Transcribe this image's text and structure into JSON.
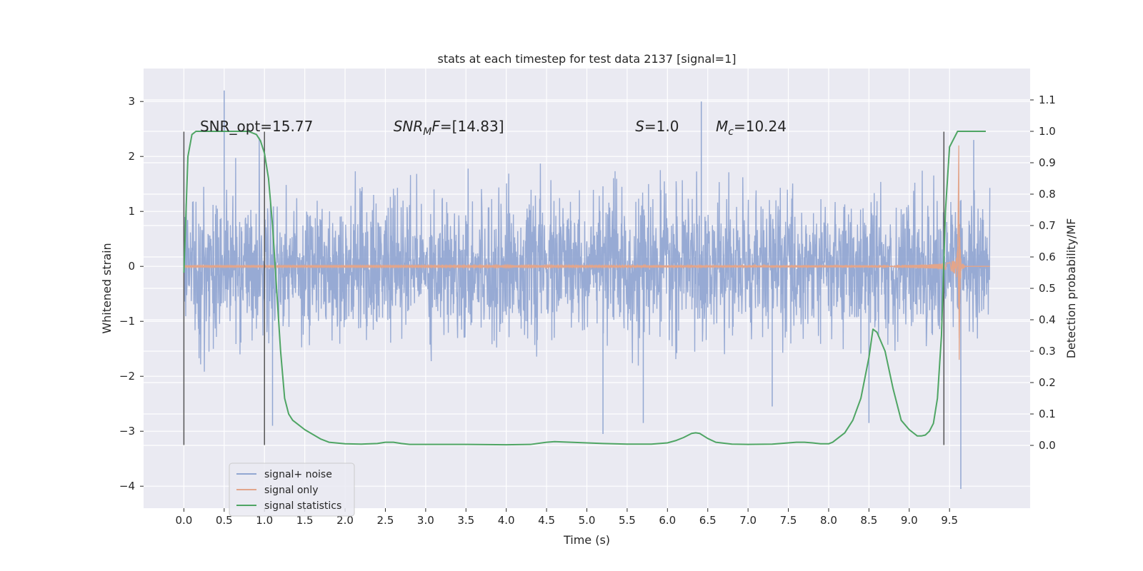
{
  "chart_data": {
    "type": "line",
    "title": "stats at each timestep for test data 2137 [signal=1]",
    "xlabel": "Time (s)",
    "ylabel": "Whitened strain",
    "y2label": "Detection probability/MF",
    "xlim": [
      -0.5,
      10.5
    ],
    "ylim": [
      -4.4,
      3.6
    ],
    "y2lim": [
      -0.2,
      1.2
    ],
    "x_ticks": [
      0.0,
      0.5,
      1.0,
      1.5,
      2.0,
      2.5,
      3.0,
      3.5,
      4.0,
      4.5,
      5.0,
      5.5,
      6.0,
      6.5,
      7.0,
      7.5,
      8.0,
      8.5,
      9.0,
      9.5
    ],
    "x_tick_labels": [
      "0.0",
      "0.5",
      "1.0",
      "1.5",
      "2.0",
      "2.5",
      "3.0",
      "3.5",
      "4.0",
      "4.5",
      "5.0",
      "5.5",
      "6.0",
      "6.5",
      "7.0",
      "7.5",
      "8.0",
      "8.5",
      "9.0",
      "9.5"
    ],
    "y_ticks": [
      -4,
      -3,
      -2,
      -1,
      0,
      1,
      2,
      3
    ],
    "y_tick_labels": [
      "−4",
      "−3",
      "−2",
      "−1",
      "0",
      "1",
      "2",
      "3"
    ],
    "y2_ticks": [
      0.0,
      0.1,
      0.2,
      0.3,
      0.4,
      0.5,
      0.6,
      0.7,
      0.8,
      0.9,
      1.0,
      1.1
    ],
    "y2_tick_labels": [
      "0.0",
      "0.1",
      "0.2",
      "0.3",
      "0.4",
      "0.5",
      "0.6",
      "0.7",
      "0.8",
      "0.9",
      "1.0",
      "1.1"
    ],
    "grid": true,
    "legend_position": "lower-left",
    "annotations": [
      {
        "name": "snr-opt",
        "text": "SNR_opt=15.77",
        "x": 0.2,
        "y": 2.55
      },
      {
        "name": "snr-mf",
        "text": "SNR_MF=[14.83]",
        "x": 2.6,
        "y": 2.55,
        "math": {
          "base": "SNR",
          "sub": "M",
          "rest": "F=[14.83]"
        }
      },
      {
        "name": "s-value",
        "text": "S=1.0",
        "x": 5.6,
        "y": 2.55,
        "math": {
          "base": "S",
          "sub": "",
          "rest": "=1.0"
        }
      },
      {
        "name": "chirp-mass",
        "text": "M_c=10.24",
        "x": 6.6,
        "y": 2.55,
        "math": {
          "base": "M",
          "sub": "c",
          "rest": "=10.24"
        }
      }
    ],
    "vlines": [
      {
        "x": 0.0,
        "ymin": -3.25,
        "ymax": 2.45
      },
      {
        "x": 1.0,
        "ymin": -3.25,
        "ymax": 2.45
      },
      {
        "x": 9.43,
        "ymin": -3.25,
        "ymax": 2.45
      }
    ],
    "series": [
      {
        "name": "signal+ noise",
        "color": "#92a7d2",
        "axis": "left",
        "kind": "noise-strain",
        "x_range": [
          0.0,
          10.0
        ],
        "envelope": 1.3,
        "peaks": [
          {
            "x": 0.5,
            "y": 3.2
          },
          {
            "x": 1.1,
            "y": -2.9
          },
          {
            "x": 5.2,
            "y": -3.05
          },
          {
            "x": 5.7,
            "y": -2.85
          },
          {
            "x": 6.42,
            "y": 3.0
          },
          {
            "x": 7.3,
            "y": -2.55
          },
          {
            "x": 8.5,
            "y": -2.85
          },
          {
            "x": 9.64,
            "y": -4.05
          },
          {
            "x": 9.8,
            "y": 2.3
          }
        ]
      },
      {
        "name": "signal only",
        "color": "#e2a58b",
        "axis": "left",
        "kind": "chirp",
        "x_start": 0.0,
        "x_merger": 9.62,
        "x_end": 10.0,
        "peak_amplitude": 2.2
      },
      {
        "name": "signal statistics",
        "color": "#4fa564",
        "axis": "right",
        "x": [
          0.0,
          0.05,
          0.1,
          0.15,
          0.2,
          0.3,
          0.4,
          0.5,
          0.6,
          0.7,
          0.8,
          0.9,
          0.95,
          1.0,
          1.05,
          1.1,
          1.15,
          1.2,
          1.25,
          1.3,
          1.35,
          1.4,
          1.5,
          1.6,
          1.7,
          1.8,
          2.0,
          2.2,
          2.4,
          2.5,
          2.6,
          2.7,
          2.8,
          3.0,
          3.2,
          3.5,
          4.0,
          4.3,
          4.5,
          4.6,
          4.8,
          5.0,
          5.2,
          5.5,
          5.8,
          6.0,
          6.1,
          6.2,
          6.3,
          6.35,
          6.4,
          6.5,
          6.6,
          6.8,
          7.0,
          7.3,
          7.5,
          7.6,
          7.7,
          7.8,
          7.9,
          8.0,
          8.05,
          8.1,
          8.2,
          8.3,
          8.4,
          8.5,
          8.55,
          8.6,
          8.7,
          8.8,
          8.9,
          9.0,
          9.1,
          9.15,
          9.2,
          9.25,
          9.3,
          9.35,
          9.4,
          9.45,
          9.5,
          9.6,
          9.8,
          9.95
        ],
        "y": [
          0.55,
          0.92,
          0.99,
          1.0,
          1.0,
          1.0,
          1.0,
          1.0,
          1.0,
          1.0,
          1.0,
          0.99,
          0.97,
          0.93,
          0.85,
          0.7,
          0.5,
          0.3,
          0.15,
          0.1,
          0.08,
          0.07,
          0.05,
          0.035,
          0.02,
          0.01,
          0.005,
          0.004,
          0.006,
          0.01,
          0.01,
          0.006,
          0.003,
          0.003,
          0.003,
          0.003,
          0.002,
          0.003,
          0.01,
          0.012,
          0.01,
          0.008,
          0.006,
          0.004,
          0.004,
          0.008,
          0.015,
          0.025,
          0.038,
          0.04,
          0.038,
          0.022,
          0.01,
          0.004,
          0.003,
          0.004,
          0.008,
          0.01,
          0.01,
          0.008,
          0.005,
          0.005,
          0.01,
          0.02,
          0.04,
          0.08,
          0.15,
          0.28,
          0.37,
          0.36,
          0.3,
          0.18,
          0.08,
          0.05,
          0.03,
          0.03,
          0.033,
          0.045,
          0.07,
          0.15,
          0.35,
          0.75,
          0.95,
          1.0,
          1.0,
          1.0
        ]
      }
    ]
  }
}
